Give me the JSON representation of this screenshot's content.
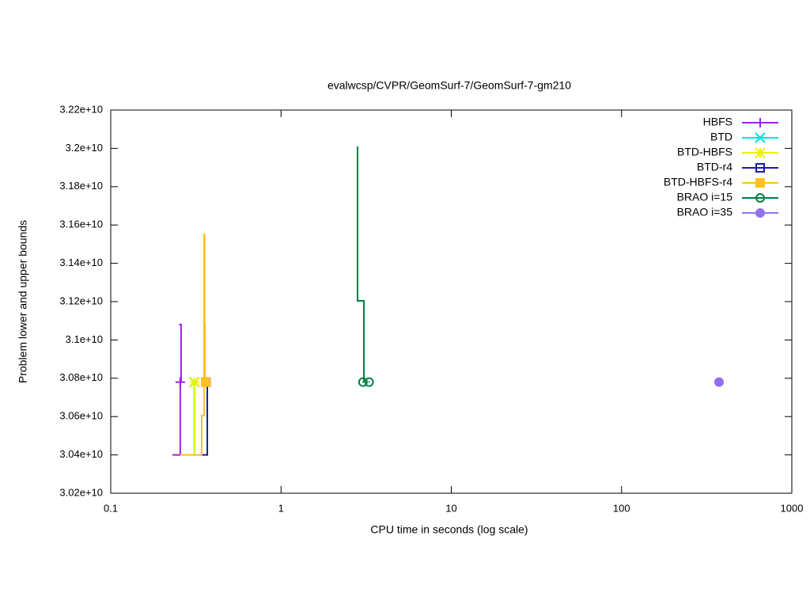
{
  "chart_data": {
    "type": "line",
    "title": "evalwcsp/CVPR/GeomSurf-7/GeomSurf-7-gm210",
    "x_label": "CPU time in seconds (log scale)",
    "y_label": "Problem lower and upper bounds",
    "x_scale": "log",
    "xlim": [
      0.1,
      1000
    ],
    "xticks": [
      0.1,
      1,
      10,
      100,
      1000
    ],
    "ylim": [
      30200000000,
      32200000000
    ],
    "yticks": [
      {
        "value": 30200000000,
        "label": "3.02e+10"
      },
      {
        "value": 30400000000,
        "label": "3.04e+10"
      },
      {
        "value": 30600000000,
        "label": "3.06e+10"
      },
      {
        "value": 30800000000,
        "label": "3.08e+10"
      },
      {
        "value": 31000000000,
        "label": "3.1e+10"
      },
      {
        "value": 31200000000,
        "label": "3.12e+10"
      },
      {
        "value": 31400000000,
        "label": "3.14e+10"
      },
      {
        "value": 31600000000,
        "label": "3.16e+10"
      },
      {
        "value": 31800000000,
        "label": "3.18e+10"
      },
      {
        "value": 32000000000,
        "label": "3.2e+10"
      },
      {
        "value": 32200000000,
        "label": "3.22e+10"
      }
    ],
    "legend": "top-right",
    "series": [
      {
        "name": "HBFS",
        "color": "#a020f0",
        "marker": "plus",
        "lines": [
          {
            "x": [
              0.23,
              0.256,
              0.256
            ],
            "values": [
              30400000000,
              30400000000,
              30780000000
            ]
          },
          {
            "x": [
              0.252,
              0.259,
              0.259
            ],
            "values": [
              31080000000,
              31080000000,
              30780000000
            ]
          }
        ],
        "points": {
          "x": [
            0.256
          ],
          "values": [
            30780000000
          ]
        }
      },
      {
        "name": "BTD",
        "color": "#00e0e0",
        "marker": "cross",
        "lines": [
          {
            "x": [
              0.31,
              0.31
            ],
            "values": [
              30400000000,
              30780000000
            ]
          }
        ],
        "points": {
          "x": [
            0.31
          ],
          "values": [
            30780000000
          ]
        }
      },
      {
        "name": "BTD-HBFS",
        "color": "#eeee00",
        "marker": "star",
        "lines": [
          {
            "x": [
              0.256,
              0.311,
              0.311
            ],
            "values": [
              30400000000,
              30400000000,
              30780000000
            ]
          }
        ],
        "points": {
          "x": [
            0.311
          ],
          "values": [
            30780000000
          ]
        }
      },
      {
        "name": "BTD-r4",
        "color": "#1a1aa8",
        "marker": "open-square",
        "lines": [
          {
            "x": [
              0.33,
              0.369,
              0.369
            ],
            "values": [
              30400000000,
              30400000000,
              30780000000
            ]
          }
        ],
        "points": {
          "x": [
            0.362
          ],
          "values": [
            30780000000
          ]
        }
      },
      {
        "name": "BTD-HBFS-r4",
        "color": "#ffc020",
        "marker": "filled-square",
        "lines": [
          {
            "x": [
              0.256,
              0.342,
              0.342,
              0.353,
              0.353
            ],
            "values": [
              30400000000,
              30400000000,
              30605000000,
              30605000000,
              31550000000
            ]
          },
          {
            "x": [
              0.349,
              0.356,
              0.356,
              0.358,
              0.358
            ],
            "values": [
              31550000000,
              31550000000,
              31080000000,
              31080000000,
              30780000000
            ]
          }
        ],
        "points": {
          "x": [
            0.361
          ],
          "values": [
            30780000000
          ]
        }
      },
      {
        "name": "BRAO i=15",
        "color": "#008040",
        "marker": "open-circle",
        "lines": [
          {
            "x": [
              2.815,
              2.815,
              3.067,
              3.067
            ],
            "values": [
              32010000000,
              31204000000,
              31204000000,
              30780000000
            ]
          }
        ],
        "points": {
          "x": [
            3.03,
            3.29
          ],
          "values": [
            30780000000,
            30780000000
          ]
        }
      },
      {
        "name": "BRAO i=35",
        "color": "#9370f0",
        "marker": "filled-circle",
        "lines": [],
        "points": {
          "x": [
            373.7
          ],
          "values": [
            30780000000
          ]
        }
      }
    ]
  }
}
